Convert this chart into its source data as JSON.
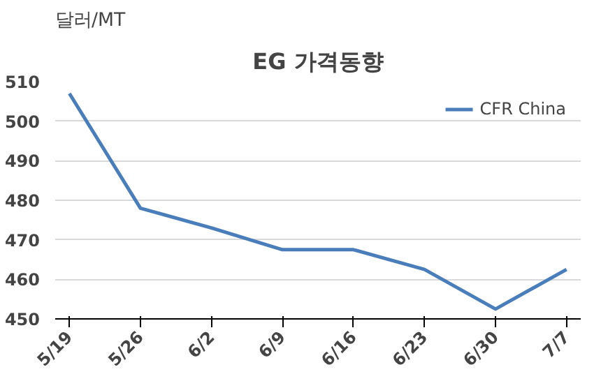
{
  "chart_data": {
    "type": "line",
    "title": "EG 가격동향",
    "ylabel": "달러/MT",
    "categories": [
      "5/19",
      "5/26",
      "6/2",
      "6/9",
      "6/16",
      "6/23",
      "6/30",
      "7/7"
    ],
    "series": [
      {
        "name": "CFR China",
        "color": "#4a7ebb",
        "values": [
          507,
          478,
          473,
          467.5,
          467.5,
          462.5,
          452.5,
          462.5
        ]
      }
    ],
    "ylim": [
      450,
      510
    ],
    "yticks": [
      450,
      460,
      470,
      480,
      490,
      500,
      510
    ],
    "grid": "y",
    "legend": "top right",
    "line_style": "solid",
    "marker": "none"
  }
}
